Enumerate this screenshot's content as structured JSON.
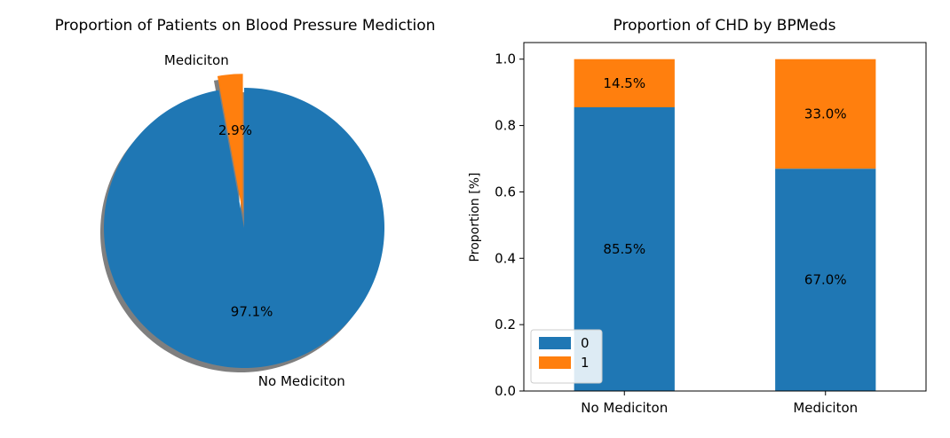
{
  "chart_data": [
    {
      "type": "pie",
      "title": "Proportion of Patients on Blood Pressure Mediction",
      "labels": [
        "No Mediciton",
        "Mediciton"
      ],
      "values": [
        97.1,
        2.9
      ],
      "value_labels": [
        "97.1%",
        "2.9%"
      ],
      "explode": [
        0,
        0.1
      ],
      "shadow": true,
      "colors": [
        "#1f77b4",
        "#ff7f0e"
      ]
    },
    {
      "type": "bar",
      "stacked": true,
      "title": "Proportion of CHD by BPMeds",
      "categories": [
        "No Mediciton",
        "Mediciton"
      ],
      "series": [
        {
          "name": "0",
          "values": [
            0.855,
            0.67
          ],
          "value_labels": [
            "85.5%",
            "67.0%"
          ],
          "color": "#1f77b4"
        },
        {
          "name": "1",
          "values": [
            0.145,
            0.33
          ],
          "value_labels": [
            "14.5%",
            "33.0%"
          ],
          "color": "#ff7f0e"
        }
      ],
      "xlabel": "",
      "ylabel": "Proportion [%]",
      "ylim": [
        0,
        1.05
      ],
      "yticks": [
        0.0,
        0.2,
        0.4,
        0.6,
        0.8,
        1.0
      ],
      "ytick_labels": [
        "0.0",
        "0.2",
        "0.4",
        "0.6",
        "0.8",
        "1.0"
      ],
      "grid": false,
      "legend_placement": "lower-left"
    }
  ]
}
